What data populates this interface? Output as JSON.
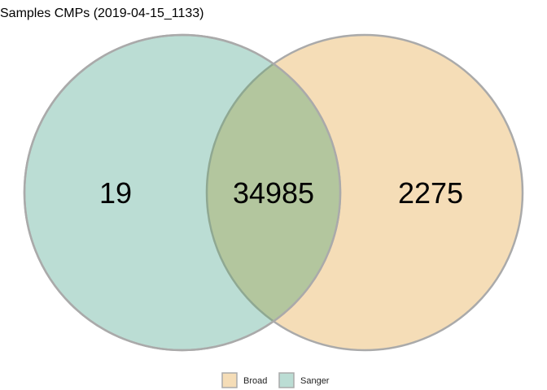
{
  "title": "Samples CMPs (2019-04-15_1133)",
  "chart_data": {
    "type": "venn",
    "sets": [
      {
        "name": "Sanger",
        "color": "#bbddd4",
        "stroke": "#aaaaaa"
      },
      {
        "name": "Broad",
        "color": "#f5ddb7",
        "stroke": "#aaaaaa"
      }
    ],
    "overlap_color": "#b3c69e",
    "regions": [
      {
        "sets": [
          "Sanger"
        ],
        "value": "19"
      },
      {
        "sets": [
          "Sanger",
          "Broad"
        ],
        "value": "34985"
      },
      {
        "sets": [
          "Broad"
        ],
        "value": "2275"
      }
    ],
    "legend": {
      "position": "bottom",
      "entries": [
        "Broad",
        "Sanger"
      ]
    }
  }
}
